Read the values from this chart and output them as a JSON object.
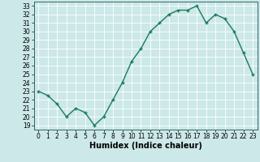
{
  "x": [
    0,
    1,
    2,
    3,
    4,
    5,
    6,
    7,
    8,
    9,
    10,
    11,
    12,
    13,
    14,
    15,
    16,
    17,
    18,
    19,
    20,
    21,
    22,
    23
  ],
  "y": [
    23.0,
    22.5,
    21.5,
    20.0,
    21.0,
    20.5,
    19.0,
    20.0,
    22.0,
    24.0,
    26.5,
    28.0,
    30.0,
    31.0,
    32.0,
    32.5,
    32.5,
    33.0,
    31.0,
    32.0,
    31.5,
    30.0,
    27.5,
    25.0
  ],
  "line_color": "#1a7a5e",
  "marker": "+",
  "marker_size": 3,
  "line_width": 1.0,
  "marker_edge_width": 1.0,
  "xlabel": "Humidex (Indice chaleur)",
  "xlim": [
    -0.5,
    23.5
  ],
  "ylim": [
    18.5,
    33.5
  ],
  "yticks": [
    19,
    20,
    21,
    22,
    23,
    24,
    25,
    26,
    27,
    28,
    29,
    30,
    31,
    32,
    33
  ],
  "xticks": [
    0,
    1,
    2,
    3,
    4,
    5,
    6,
    7,
    8,
    9,
    10,
    11,
    12,
    13,
    14,
    15,
    16,
    17,
    18,
    19,
    20,
    21,
    22,
    23
  ],
  "bg_color": "#cce8e8",
  "grid_color": "#ffffff",
  "tick_fontsize": 5.5,
  "xlabel_fontsize": 7,
  "spine_color": "#336666"
}
